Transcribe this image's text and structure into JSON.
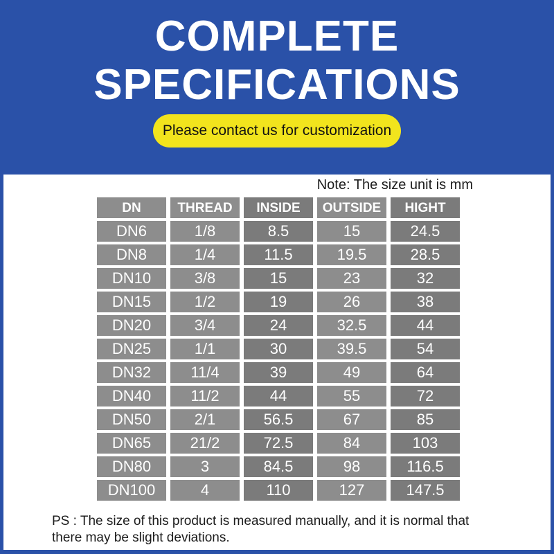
{
  "colors": {
    "blue": "#2A51A8",
    "yellow": "#F2E41D",
    "gray_light": "#8D8D8D",
    "gray_dark": "#7B7B7B"
  },
  "banner": {
    "title_line1": "COMPLETE",
    "title_line2": "SPECIFICATIONS",
    "pill_text": "Please contact us for customization"
  },
  "note": "Note: The size unit is mm",
  "table": {
    "columns": [
      "DN",
      "THREAD",
      "INSIDE",
      "OUTSIDE",
      "HIGHT"
    ],
    "rows": [
      [
        "DN6",
        "1/8",
        "8.5",
        "15",
        "24.5"
      ],
      [
        "DN8",
        "1/4",
        "11.5",
        "19.5",
        "28.5"
      ],
      [
        "DN10",
        "3/8",
        "15",
        "23",
        "32"
      ],
      [
        "DN15",
        "1/2",
        "19",
        "26",
        "38"
      ],
      [
        "DN20",
        "3/4",
        "24",
        "32.5",
        "44"
      ],
      [
        "DN25",
        "1/1",
        "30",
        "39.5",
        "54"
      ],
      [
        "DN32",
        "11/4",
        "39",
        "49",
        "64"
      ],
      [
        "DN40",
        "11/2",
        "44",
        "55",
        "72"
      ],
      [
        "DN50",
        "2/1",
        "56.5",
        "67",
        "85"
      ],
      [
        "DN65",
        "21/2",
        "72.5",
        "84",
        "103"
      ],
      [
        "DN80",
        "3",
        "84.5",
        "98",
        "116.5"
      ],
      [
        "DN100",
        "4",
        "110",
        "127",
        "147.5"
      ]
    ]
  },
  "footer": {
    "ps_line1": "PS : The size of this product is measured manually, and it is normal that",
    "ps_line2": "there may be slight deviations."
  }
}
